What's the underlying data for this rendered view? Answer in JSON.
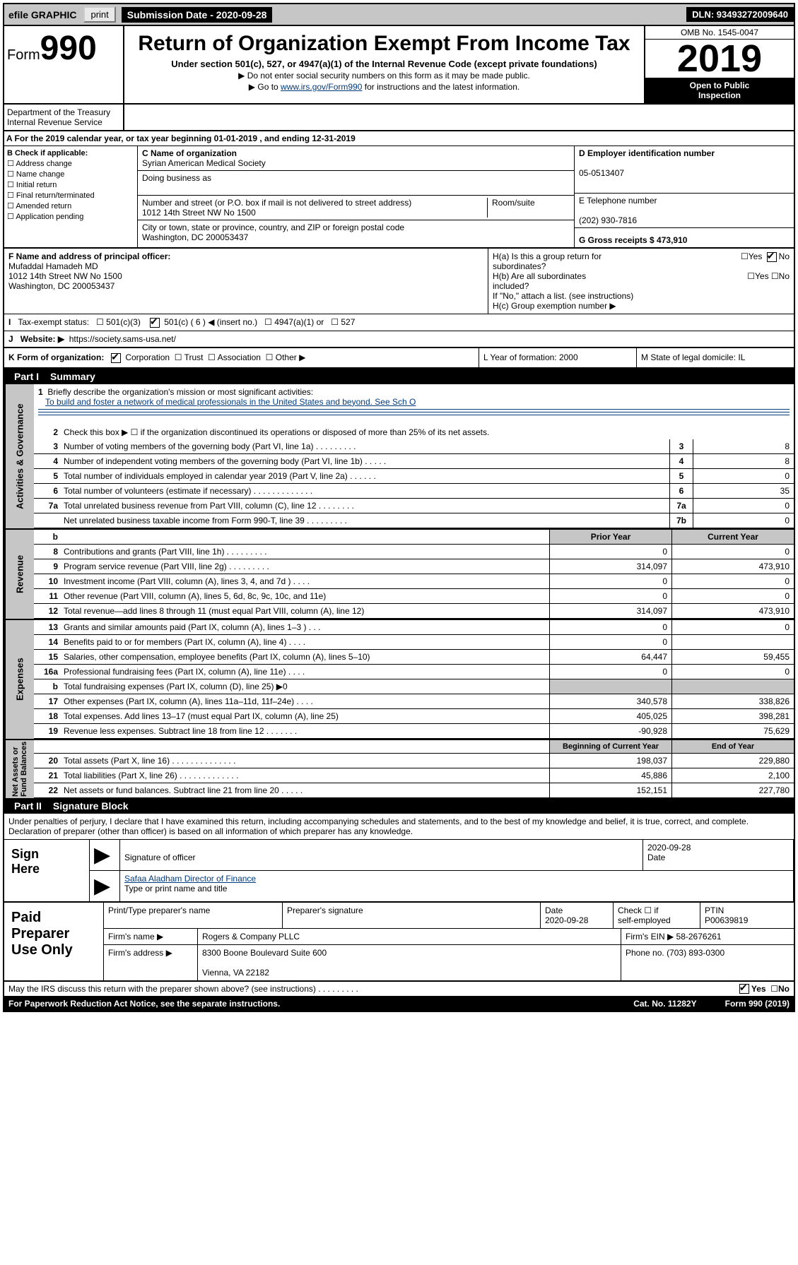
{
  "topbar": {
    "efile": "efile GRAPHIC",
    "print": "print",
    "sub_label": "Submission Date - 2020-09-28",
    "dln": "DLN: 93493272009640"
  },
  "header": {
    "form_label": "Form",
    "form_num": "990",
    "dept": "Department of the Treasury\nInternal Revenue Service",
    "title": "Return of Organization Exempt From Income Tax",
    "subtitle": "Under section 501(c), 527, or 4947(a)(1) of the Internal Revenue Code (except private foundations)",
    "note1": "▶ Do not enter social security numbers on this form as it may be made public.",
    "note2_pre": "▶ Go to ",
    "note2_link": "www.irs.gov/Form990",
    "note2_post": " for instructions and the latest information.",
    "omb": "OMB No. 1545-0047",
    "year": "2019",
    "open": "Open to Public\nInspection"
  },
  "row_a": "A   For the 2019 calendar year, or tax year beginning 01-01-2019     , and ending 12-31-2019",
  "col_b": {
    "hdr": "B Check if applicable:",
    "items": [
      "Address change",
      "Name change",
      "Initial return",
      "Final return/terminated",
      "Amended return",
      "Application pending"
    ]
  },
  "col_c": {
    "name_lbl": "C Name of organization",
    "name": "Syrian American Medical Society",
    "dba_lbl": "Doing business as",
    "dba": "",
    "addr_lbl": "Number and street (or P.O. box if mail is not delivered to street address)",
    "room_lbl": "Room/suite",
    "addr": "1012 14th Street NW No 1500",
    "city_lbl": "City or town, state or province, country, and ZIP or foreign postal code",
    "city": "Washington, DC  200053437"
  },
  "col_right": {
    "ein_lbl": "D Employer identification number",
    "ein": "05-0513407",
    "tel_lbl": "E Telephone number",
    "tel": "(202) 930-7816",
    "gross_lbl": "G Gross receipts $ 473,910"
  },
  "f": {
    "lbl": "F  Name and address of principal officer:",
    "name": "Mufaddal Hamadeh MD",
    "addr1": "1012 14th Street NW No 1500",
    "addr2": "Washington, DC  200053437"
  },
  "h": {
    "a": "H(a)  Is this a group return for\n         subordinates?",
    "b": "H(b)  Are all subordinates\n         included?",
    "note": "If \"No,\" attach a list. (see instructions)",
    "c": "H(c)  Group exemption number ▶"
  },
  "i": {
    "lbl": "Tax-exempt status:",
    "opts": [
      "501(c)(3)",
      "501(c) ( 6 ) ◀ (insert no.)",
      "4947(a)(1) or",
      "527"
    ]
  },
  "j": {
    "lbl": "Website: ▶",
    "val": "https://society.sams-usa.net/"
  },
  "k": {
    "lbl": "K Form of organization:",
    "opts": [
      "Corporation",
      "Trust",
      "Association",
      "Other ▶"
    ]
  },
  "l": {
    "lbl": "L Year of formation: 2000"
  },
  "m": {
    "lbl": "M State of legal domicile: IL"
  },
  "part1": {
    "label": "Part I",
    "title": "Summary"
  },
  "governance": {
    "label": "Activities & Governance",
    "l1": {
      "n": "1",
      "t": "Briefly describe the organization's mission or most significant activities:",
      "mission": "To build and foster a network of medical professionals in the United States and beyond. See Sch O"
    },
    "l2": {
      "n": "2",
      "t": "Check this box ▶ ☐  if the organization discontinued its operations or disposed of more than 25% of its net assets."
    },
    "lines": [
      {
        "n": "3",
        "t": "Number of voting members of the governing body (Part VI, line 1a)   .    .    .    .    .    .    .    .    .",
        "bn": "3",
        "v": "8"
      },
      {
        "n": "4",
        "t": "Number of independent voting members of the governing body (Part VI, line 1b)    .    .    .    .    .",
        "bn": "4",
        "v": "8"
      },
      {
        "n": "5",
        "t": "Total number of individuals employed in calendar year 2019 (Part V, line 2a)    .    .    .    .    .    .",
        "bn": "5",
        "v": "0"
      },
      {
        "n": "6",
        "t": "Total number of volunteers (estimate if necessary)    .    .    .    .    .    .    .    .    .    .    .    .    .",
        "bn": "6",
        "v": "35"
      },
      {
        "n": "7a",
        "t": "Total unrelated business revenue from Part VIII, column (C), line 12    .    .    .    .    .    .    .    .",
        "bn": "7a",
        "v": "0"
      },
      {
        "n": "",
        "t": "Net unrelated business taxable income from Form 990-T, line 39    .    .    .    .    .    .    .    .    .",
        "bn": "7b",
        "v": "0"
      }
    ]
  },
  "revenue": {
    "label": "Revenue",
    "hdr_b": "b",
    "hdr_prior": "Prior Year",
    "hdr_curr": "Current Year",
    "lines": [
      {
        "n": "8",
        "t": "Contributions and grants (Part VIII, line 1h)    .    .    .    .    .    .    .    .    .",
        "p": "0",
        "c": "0"
      },
      {
        "n": "9",
        "t": "Program service revenue (Part VIII, line 2g)    .    .    .    .    .    .    .    .    .",
        "p": "314,097",
        "c": "473,910"
      },
      {
        "n": "10",
        "t": "Investment income (Part VIII, column (A), lines 3, 4, and 7d )    .    .    .    .",
        "p": "0",
        "c": "0"
      },
      {
        "n": "11",
        "t": "Other revenue (Part VIII, column (A), lines 5, 6d, 8c, 9c, 10c, and 11e)",
        "p": "0",
        "c": "0"
      },
      {
        "n": "12",
        "t": "Total revenue—add lines 8 through 11 (must equal Part VIII, column (A), line 12)",
        "p": "314,097",
        "c": "473,910"
      }
    ]
  },
  "expenses": {
    "label": "Expenses",
    "lines": [
      {
        "n": "13",
        "t": "Grants and similar amounts paid (Part IX, column (A), lines 1–3 )    .    .    .",
        "p": "0",
        "c": "0"
      },
      {
        "n": "14",
        "t": "Benefits paid to or for members (Part IX, column (A), line 4)    .    .    .    .",
        "p": "0",
        "c": ""
      },
      {
        "n": "15",
        "t": "Salaries, other compensation, employee benefits (Part IX, column (A), lines 5–10)",
        "p": "64,447",
        "c": "59,455"
      },
      {
        "n": "16a",
        "t": "Professional fundraising fees (Part IX, column (A), line 11e)    .    .    .    .",
        "p": "0",
        "c": "0"
      },
      {
        "n": "b",
        "t": "Total fundraising expenses (Part IX, column (D), line 25) ▶0",
        "p": "",
        "c": "",
        "shade": true
      },
      {
        "n": "17",
        "t": "Other expenses (Part IX, column (A), lines 11a–11d, 11f–24e)    .    .    .    .",
        "p": "340,578",
        "c": "338,826"
      },
      {
        "n": "18",
        "t": "Total expenses. Add lines 13–17 (must equal Part IX, column (A), line 25)",
        "p": "405,025",
        "c": "398,281"
      },
      {
        "n": "19",
        "t": "Revenue less expenses. Subtract line 18 from line 12    .    .    .    .    .    .    .",
        "p": "-90,928",
        "c": "75,629"
      }
    ]
  },
  "netassets": {
    "label": "Net Assets or\nFund Balances",
    "hdr_prior": "Beginning of Current Year",
    "hdr_curr": "End of Year",
    "lines": [
      {
        "n": "20",
        "t": "Total assets (Part X, line 16)    .    .    .    .    .    .    .    .    .    .    .    .    .    .",
        "p": "198,037",
        "c": "229,880"
      },
      {
        "n": "21",
        "t": "Total liabilities (Part X, line 26)    .    .    .    .    .    .    .    .    .    .    .    .    .",
        "p": "45,886",
        "c": "2,100"
      },
      {
        "n": "22",
        "t": "Net assets or fund balances. Subtract line 21 from line 20    .    .    .    .    .",
        "p": "152,151",
        "c": "227,780"
      }
    ]
  },
  "part2": {
    "label": "Part II",
    "title": "Signature Block"
  },
  "sig": {
    "decl": "Under penalties of perjury, I declare that I have examined this return, including accompanying schedules and statements, and to the best of my knowledge and belief, it is true, correct, and complete. Declaration of preparer (other than officer) is based on all information of which preparer has any knowledge.",
    "here": "Sign\nHere",
    "sig_lbl": "Signature of officer",
    "date_lbl": "Date",
    "date": "2020-09-28",
    "name": "Safaa Aladham  Director of Finance",
    "name_lbl": "Type or print name and title"
  },
  "paid": {
    "lab": "Paid\nPreparer\nUse Only",
    "h_name": "Print/Type preparer's name",
    "h_sig": "Preparer's signature",
    "h_date": "Date",
    "date": "2020-09-28",
    "h_self": "Check ☐ if\nself-employed",
    "h_ptin": "PTIN",
    "ptin": "P00639819",
    "firm_lbl": "Firm's name    ▶",
    "firm": "Rogers & Company PLLC",
    "ein_lbl": "Firm's EIN ▶",
    "ein": "58-2676261",
    "addr_lbl": "Firm's address ▶",
    "addr": "8300 Boone Boulevard Suite 600\n\nVienna, VA  22182",
    "phone_lbl": "Phone no.",
    "phone": "(703) 893-0300"
  },
  "discuss": "May the IRS discuss this return with the preparer shown above? (see instructions)    .    .    .    .    .    .    .    .    .",
  "footer": {
    "l": "For Paperwork Reduction Act Notice, see the separate instructions.",
    "c": "Cat. No. 11282Y",
    "r": "Form 990 (2019)"
  }
}
